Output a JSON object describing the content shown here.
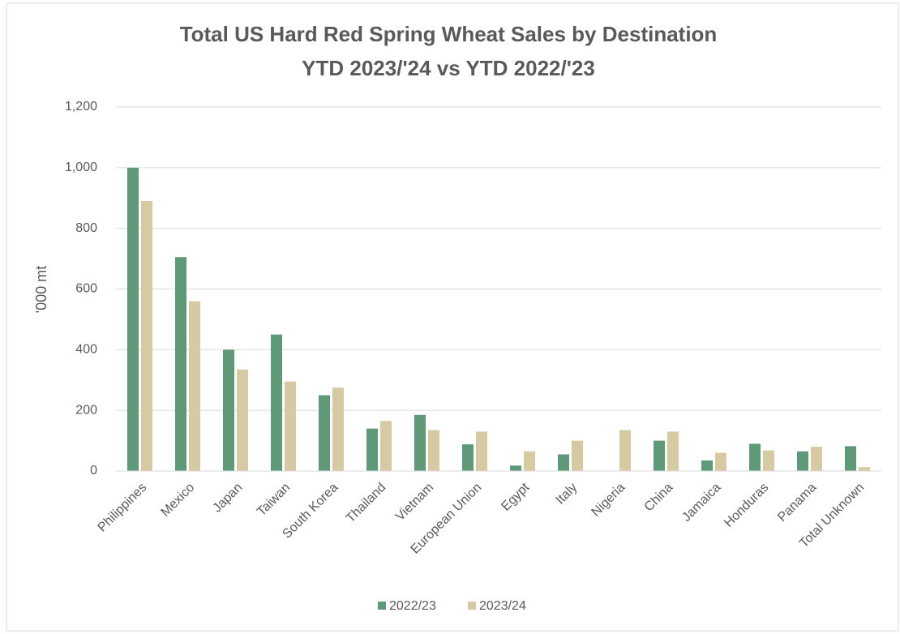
{
  "chart_data": {
    "type": "bar",
    "title": [
      "Total US Hard Red Spring Wheat Sales by Destination",
      "YTD 2023/'24 vs YTD 2022/'23"
    ],
    "y_label": "'000 mt",
    "categories": [
      "Philippines",
      "Mexico",
      "Japan",
      "Taiwan",
      "South Korea",
      "Thailand",
      "Vietnam",
      "European Union",
      "Egypt",
      "Italy",
      "Nigeria",
      "China",
      "Jamaica",
      "Honduras",
      "Panama",
      "Total Unknown"
    ],
    "series": [
      {
        "name": "2022/23",
        "color": "#5f9a78",
        "values": [
          1000,
          705,
          400,
          450,
          250,
          140,
          185,
          88,
          18,
          55,
          0,
          100,
          35,
          90,
          65,
          82
        ]
      },
      {
        "name": "2023/24",
        "color": "#d6caa3",
        "values": [
          890,
          560,
          335,
          295,
          275,
          165,
          135,
          130,
          65,
          100,
          135,
          130,
          60,
          68,
          80,
          13
        ]
      }
    ],
    "ylim": [
      0,
      1200
    ],
    "yticks": [
      0,
      200,
      400,
      600,
      800,
      {
        "value": 1000,
        "label": "1,000"
      },
      {
        "value": 1200,
        "label": "1,200"
      }
    ],
    "grid": true,
    "legend": "bottom"
  }
}
